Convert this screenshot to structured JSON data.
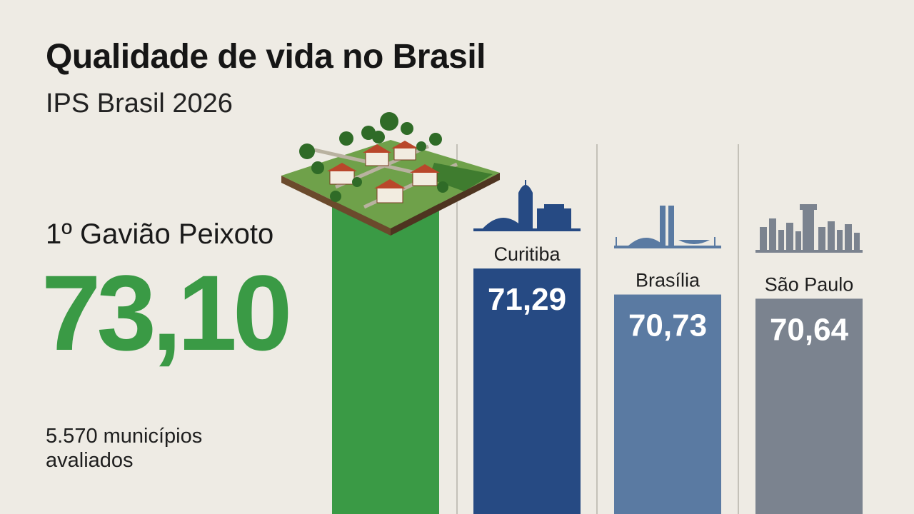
{
  "title": "Qualidade de vida no Brasil",
  "subtitle": "IPS Brasil 2026",
  "leader": {
    "rank_label": "1º Gavião Peixoto",
    "value_label": "73,10"
  },
  "footnote": "5.570 municípios avaliados",
  "colors": {
    "leader": "#3a9a45",
    "curitiba": "#264a83",
    "brasilia": "#5a7aa2",
    "sao_paulo": "#7b838f",
    "value_text_leader": "#3a9a45",
    "value_text_bars": "#ffffff"
  },
  "icons": {
    "leader": "rural-village-tile-icon",
    "curitiba": "curitiba-skyline-icon",
    "brasilia": "brasilia-congress-icon",
    "sao_paulo": "sao-paulo-skyline-icon"
  },
  "chart_data": {
    "type": "bar",
    "title": "Qualidade de vida no Brasil",
    "subtitle": "IPS Brasil 2026",
    "categories": [
      "Gavião Peixoto",
      "Curitiba",
      "Brasília",
      "São Paulo"
    ],
    "values": [
      73.1,
      71.29,
      70.73,
      70.64
    ],
    "value_labels": [
      "73,10",
      "71,29",
      "70,73",
      "70,64"
    ],
    "category_labels_shown": [
      "",
      "Curitiba",
      "Brasília",
      "São Paulo"
    ],
    "ylim": [
      66,
      74
    ],
    "grid": false,
    "legend": "none"
  }
}
